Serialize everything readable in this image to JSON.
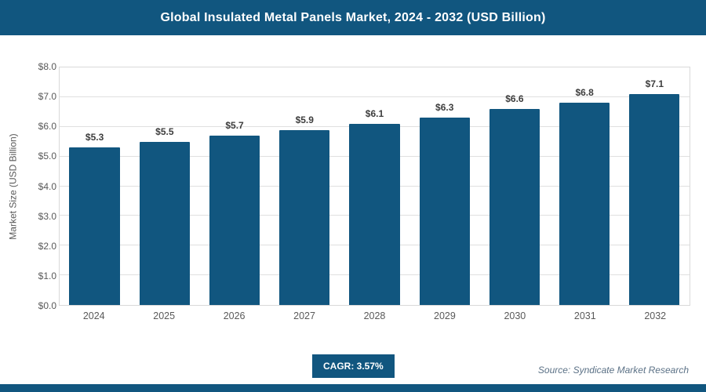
{
  "header": {
    "title": "Global Insulated Metal Panels Market, 2024 - 2032 (USD Billion)"
  },
  "chart_data": {
    "type": "bar",
    "title": "Global Insulated Metal Panels Market, 2024 - 2032 (USD Billion)",
    "categories": [
      "2024",
      "2025",
      "2026",
      "2027",
      "2028",
      "2029",
      "2030",
      "2031",
      "2032"
    ],
    "values": [
      5.3,
      5.5,
      5.7,
      5.9,
      6.1,
      6.3,
      6.6,
      6.8,
      7.1
    ],
    "value_labels": [
      "$5.3",
      "$5.5",
      "$5.7",
      "$5.9",
      "$6.1",
      "$6.3",
      "$6.6",
      "$6.8",
      "$7.1"
    ],
    "xlabel": "",
    "ylabel": "Market Size (USD Billion)",
    "ylim": [
      0,
      8
    ],
    "ytick_labels": [
      "$0.0",
      "$1.0",
      "$2.0",
      "$3.0",
      "$4.0",
      "$5.0",
      "$6.0",
      "$7.0",
      "$8.0"
    ],
    "grid": true,
    "legend": "none",
    "bar_color": "#11567F"
  },
  "footer": {
    "cagr_label": "CAGR: 3.57%",
    "source": "Source: Syndicate Market Research"
  },
  "colors": {
    "accent": "#11567F",
    "grid": "#e0e0e0",
    "axis_text": "#595959"
  }
}
